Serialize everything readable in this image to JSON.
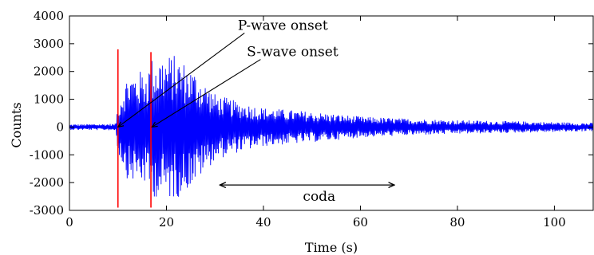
{
  "chart_data": {
    "type": "line",
    "title": "",
    "xlabel": "Time (s)",
    "ylabel": "Counts",
    "xlim": [
      0,
      108
    ],
    "ylim": [
      -3000,
      4000
    ],
    "x_ticks": [
      0,
      20,
      40,
      60,
      80,
      100
    ],
    "y_ticks": [
      4000,
      3000,
      2000,
      1000,
      0,
      -1000,
      -2000,
      -3000
    ],
    "x_tick_labels": [
      "0",
      "20",
      "40",
      "60",
      "80",
      "100"
    ],
    "y_tick_labels": [
      "4000",
      "3000",
      "2000",
      "1000",
      "0",
      "-1000",
      "-2000",
      "-3000"
    ],
    "grid": false,
    "series": [
      {
        "color": "#0000ff",
        "sample_interval_s": 0.1,
        "envelope_points": [
          [
            0,
            100
          ],
          [
            9.5,
            120
          ],
          [
            10,
            900
          ],
          [
            12,
            1900
          ],
          [
            14,
            2000
          ],
          [
            16,
            2100
          ],
          [
            17,
            2500
          ],
          [
            19,
            2600
          ],
          [
            22,
            2600
          ],
          [
            26,
            2000
          ],
          [
            28,
            1600
          ],
          [
            30,
            1200
          ],
          [
            35,
            900
          ],
          [
            40,
            700
          ],
          [
            50,
            550
          ],
          [
            60,
            380
          ],
          [
            70,
            300
          ],
          [
            80,
            250
          ],
          [
            100,
            180
          ],
          [
            108,
            150
          ]
        ]
      }
    ],
    "markers": [
      {
        "x": 10,
        "y_from": -2900,
        "y_to": 2800,
        "color": "#ff0000"
      },
      {
        "x": 16.8,
        "y_from": -2900,
        "y_to": 2700,
        "color": "#ff0000"
      }
    ],
    "annotations": [
      {
        "text": "P-wave onset",
        "x": 44,
        "y": 3500,
        "arrow_to": [
          10,
          0
        ]
      },
      {
        "text": "S-wave onset",
        "x": 46,
        "y": 2550,
        "arrow_to": [
          17,
          0
        ]
      },
      {
        "text": "coda",
        "x": 51.5,
        "y": -2000,
        "span_from": 31,
        "span_to": 67
      }
    ]
  }
}
